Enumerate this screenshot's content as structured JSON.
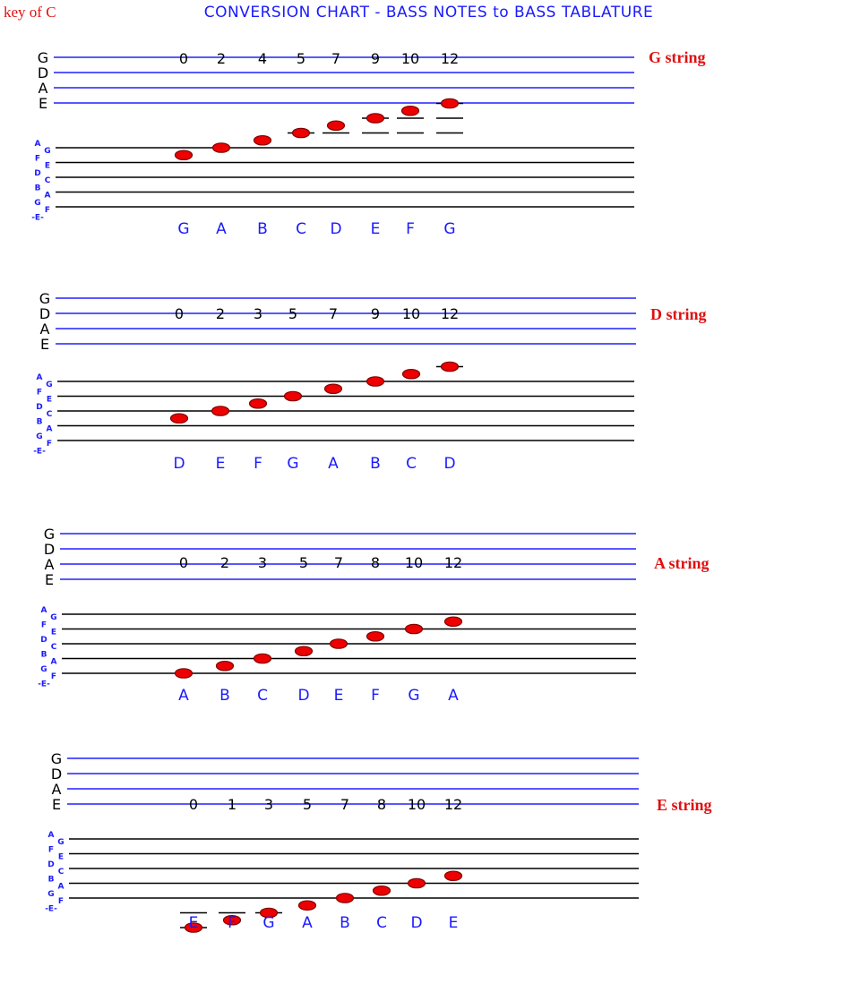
{
  "header": {
    "key_label": "key of C",
    "title": "CONVERSION CHART - BASS NOTES to BASS TABLATURE"
  },
  "tab_string_names": [
    "G",
    "D",
    "A",
    "E"
  ],
  "staff_line_names": [
    "G",
    "E",
    "C",
    "A",
    "F"
  ],
  "staff_space_names": [
    "A",
    "F",
    "D",
    "B",
    "G",
    "-E-"
  ],
  "colors": {
    "tab_line": "#2020ff",
    "staff_line": "#000000",
    "note_fill": "#ee0000",
    "note_stroke": "#800000",
    "string_label": "#e01010",
    "note_name": "#1a1aff",
    "fret_number": "#000000"
  },
  "sections": [
    {
      "string_label": "G string",
      "frets": [
        "0",
        "2",
        "4",
        "5",
        "7",
        "9",
        "10",
        "12"
      ],
      "notes": [
        "G",
        "A",
        "B",
        "C",
        "D",
        "E",
        "F",
        "G"
      ],
      "staff_steps": [
        -1,
        0,
        1,
        2,
        3,
        4,
        5,
        6
      ]
    },
    {
      "string_label": "D string",
      "frets": [
        "0",
        "2",
        "3",
        "5",
        "7",
        "9",
        "10",
        "12"
      ],
      "notes": [
        "D",
        "E",
        "F",
        "G",
        "A",
        "B",
        "C",
        "D"
      ],
      "staff_steps": [
        -5,
        -4,
        -3,
        -2,
        -1,
        0,
        1,
        2
      ]
    },
    {
      "string_label": "A string",
      "frets": [
        "0",
        "2",
        "3",
        "5",
        "7",
        "8",
        "10",
        "12"
      ],
      "notes": [
        "A",
        "B",
        "C",
        "D",
        "E",
        "F",
        "G",
        "A"
      ],
      "staff_steps": [
        -8,
        -7,
        -6,
        -5,
        -4,
        -3,
        -2,
        -1
      ]
    },
    {
      "string_label": "E string",
      "frets": [
        "0",
        "1",
        "3",
        "5",
        "7",
        "8",
        "10",
        "12"
      ],
      "notes": [
        "E",
        "F",
        "G",
        "A",
        "B",
        "C",
        "D",
        "E"
      ],
      "staff_steps": [
        -12,
        -11,
        -10,
        -9,
        -8,
        -7,
        -6,
        -5
      ]
    }
  ]
}
